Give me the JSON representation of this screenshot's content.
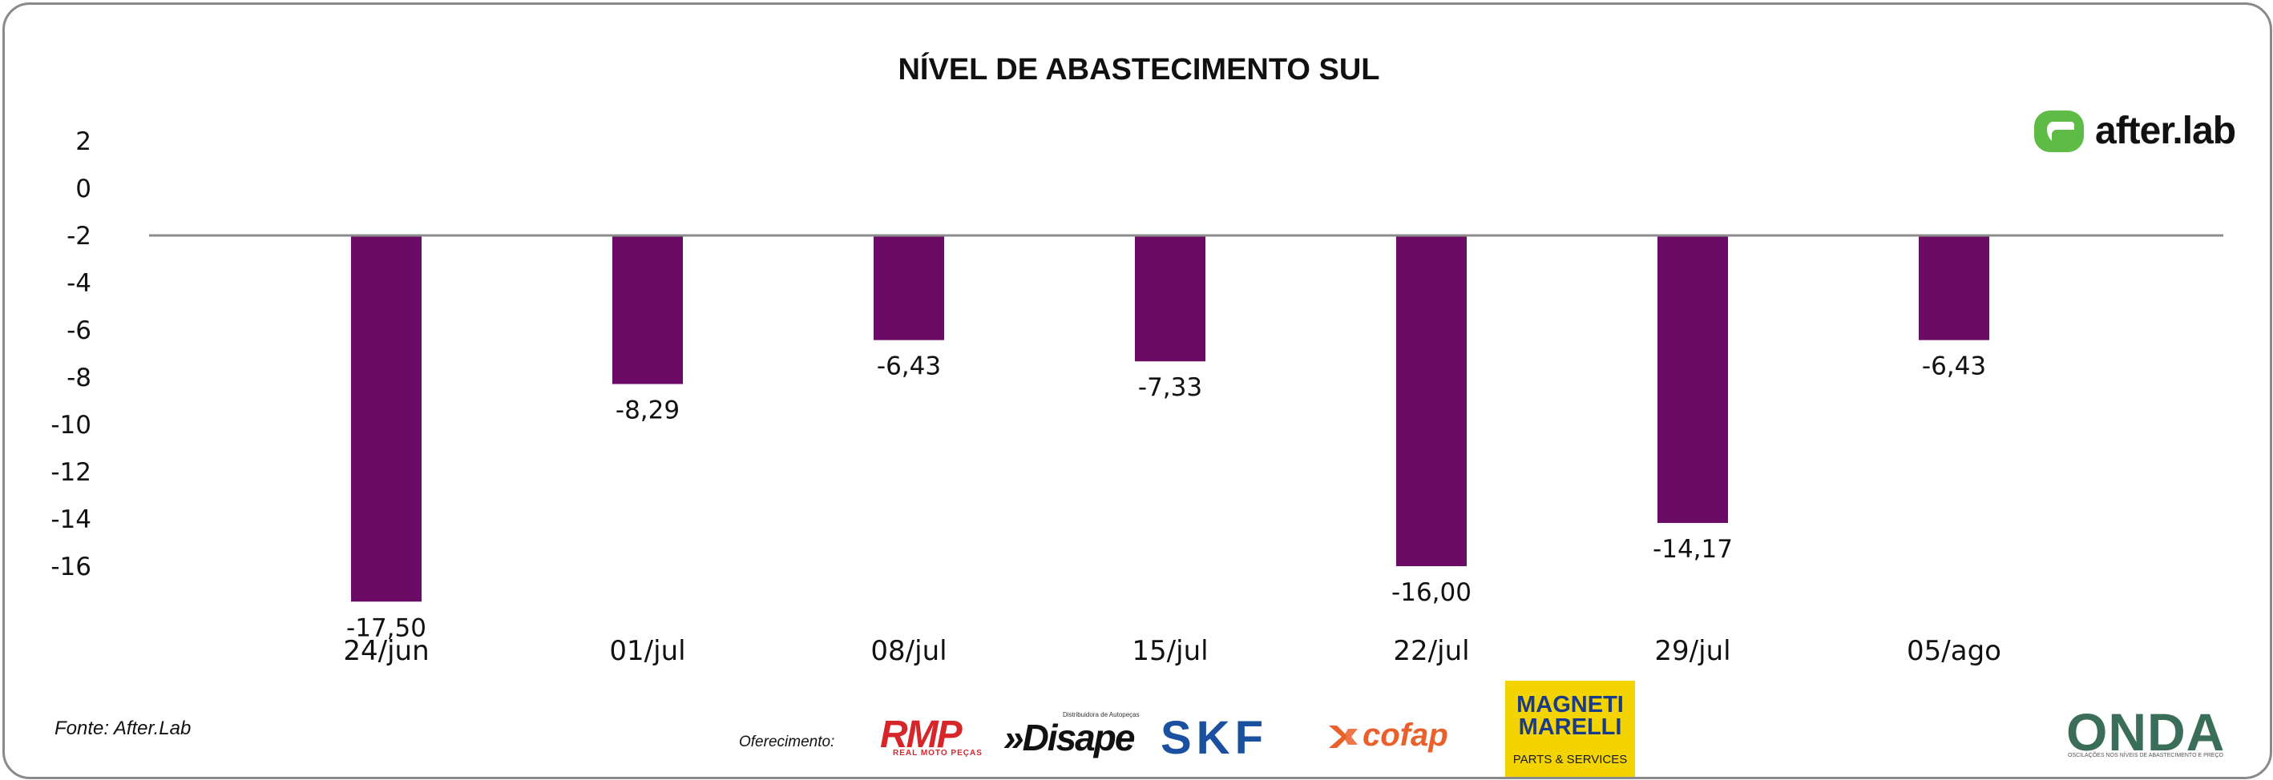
{
  "chart_data": {
    "type": "bar",
    "title": "NÍVEL DE ABASTECIMENTO SUL",
    "categories": [
      "24/jun",
      "01/jul",
      "08/jul",
      "15/jul",
      "22/jul",
      "29/jul",
      "05/ago"
    ],
    "values": [
      -17.5,
      -8.29,
      -6.43,
      -7.33,
      -16.0,
      -14.17,
      -6.43
    ],
    "data_labels": [
      "-17,50",
      "-8,29",
      "-6,43",
      "-7,33",
      "-16,00",
      "-14,17",
      "-6,43"
    ],
    "baseline": -2,
    "y_ticks": [
      2,
      0,
      -2,
      -4,
      -6,
      -8,
      -10,
      -12,
      -14,
      -16
    ],
    "y_tick_labels": [
      "2",
      "0",
      "-2",
      "-4",
      "-6",
      "-8",
      "-10",
      "-12",
      "-14",
      "-16"
    ],
    "ylim": [
      -16,
      2
    ],
    "xlabel": "",
    "ylabel": "",
    "grid": false,
    "bar_color": "#6c0b66",
    "baseline_color": "#8c8c8c"
  },
  "footer": {
    "source": "Fonte: After.Lab",
    "sponsor_label": "Oferecimento:"
  },
  "logos": {
    "afterlab": "after.lab",
    "rmp": "RMP",
    "rmp_sub": "REAL MOTO PEÇAS",
    "disape": "»Disape",
    "disape_sub": "Distribuidora de Autopeças",
    "skf": "SKF",
    "cofap": "cofap",
    "marelli": "MAGNETI MARELLI",
    "marelli_sub": "PARTS & SERVICES",
    "onda": "ONDA",
    "onda_sub": "OSCILAÇÕES NOS NÍVEIS DE ABASTECIMENTO E PREÇO"
  },
  "colors": {
    "afterlab_green": "#5dbb46",
    "rmp_red": "#d7262a",
    "skf_blue": "#1b4fa0",
    "cofap_orange": "#e9602b",
    "marelli_yellow": "#f4d400",
    "onda_green": "#3b6e58"
  }
}
